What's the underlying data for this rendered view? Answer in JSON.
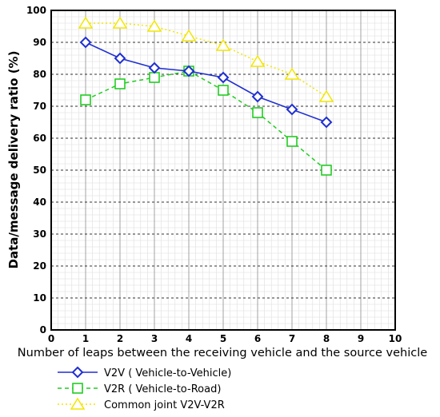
{
  "chart_data": {
    "type": "line",
    "xlabel": "Number of leaps between the receiving vehicle and the source vehicle",
    "ylabel": "Data/message delivery ratio (%)",
    "xlim": [
      0,
      10
    ],
    "ylim": [
      0,
      100
    ],
    "x_ticks": [
      "0",
      "1",
      "2",
      "3",
      "4",
      "5",
      "6",
      "7",
      "8",
      "9",
      "10"
    ],
    "y_ticks": [
      "0",
      "10",
      "20",
      "30",
      "40",
      "50",
      "60",
      "70",
      "80",
      "90",
      "100"
    ],
    "grid": true,
    "legend_position": "bottom",
    "series": [
      {
        "name": "V2V ( Vehicle-to-Vehicle)",
        "color": "#1f2fd0",
        "line_style": "solid",
        "marker": "diamond",
        "x": [
          1,
          2,
          3,
          4,
          5,
          6,
          7,
          8
        ],
        "y": [
          90,
          85,
          82,
          81,
          79,
          73,
          69,
          65
        ]
      },
      {
        "name": "V2R ( Vehicle-to-Road)",
        "color": "#22cc22",
        "line_style": "dashed",
        "marker": "square",
        "x": [
          1,
          2,
          3,
          4,
          5,
          6,
          7,
          8
        ],
        "y": [
          72,
          77,
          79,
          81,
          75,
          68,
          59,
          50
        ]
      },
      {
        "name": "Common joint V2V-V2R",
        "color": "#f2e600",
        "line_style": "dotted",
        "marker": "triangle",
        "x": [
          1,
          2,
          3,
          4,
          5,
          6,
          7,
          8
        ],
        "y": [
          96,
          96,
          95,
          92,
          89,
          84,
          80,
          73
        ]
      }
    ]
  }
}
